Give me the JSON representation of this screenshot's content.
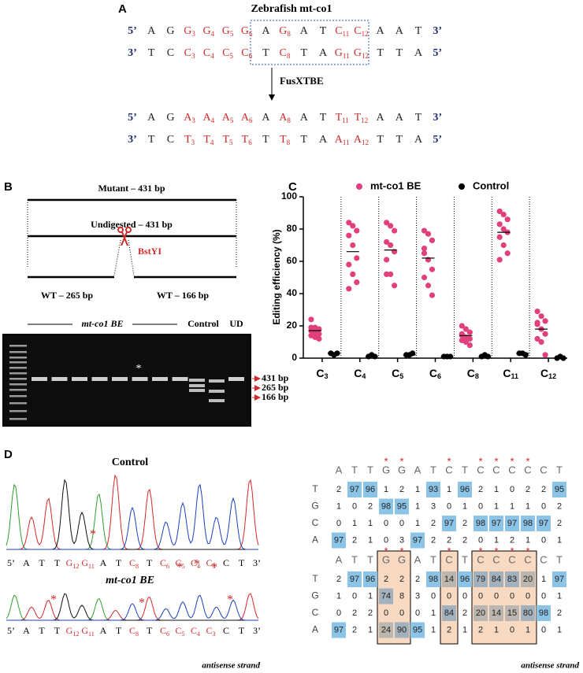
{
  "panel_a": {
    "label": "A",
    "title": "Zebrafish mt-co1",
    "original": [
      [
        "5’",
        "A",
        "G",
        {
          "base": "G",
          "sub": "3"
        },
        {
          "base": "G",
          "sub": "4"
        },
        {
          "base": "G",
          "sub": "5"
        },
        {
          "base": "G",
          "sub": "6"
        },
        "A",
        {
          "base": "G",
          "sub": "8"
        },
        "A",
        "T",
        {
          "base": "C",
          "sub": "11"
        },
        {
          "base": "C",
          "sub": "12"
        },
        "A",
        "A",
        "T",
        "3’"
      ],
      [
        "3’",
        "T",
        "C",
        {
          "base": "C",
          "sub": "3"
        },
        {
          "base": "C",
          "sub": "4"
        },
        {
          "base": "C",
          "sub": "5"
        },
        {
          "base": "C",
          "sub": "6"
        },
        "T",
        {
          "base": "C",
          "sub": "8"
        },
        "T",
        "A",
        {
          "base": "G",
          "sub": "11"
        },
        {
          "base": "G",
          "sub": "12"
        },
        "T",
        "T",
        "A",
        "5’"
      ]
    ],
    "arrow_label": "FusXTBE",
    "edited": [
      [
        "5’",
        "A",
        "G",
        {
          "base": "A",
          "sub": "3"
        },
        {
          "base": "A",
          "sub": "4"
        },
        {
          "base": "A",
          "sub": "5"
        },
        {
          "base": "A",
          "sub": "6"
        },
        "A",
        {
          "base": "A",
          "sub": "8"
        },
        "A",
        "T",
        {
          "base": "T",
          "sub": "11"
        },
        {
          "base": "T",
          "sub": "12"
        },
        "A",
        "A",
        "T",
        "3’"
      ],
      [
        "3’",
        "T",
        "C",
        {
          "base": "T",
          "sub": "3"
        },
        {
          "base": "T",
          "sub": "4"
        },
        {
          "base": "T",
          "sub": "5"
        },
        {
          "base": "T",
          "sub": "6"
        },
        "T",
        {
          "base": "T",
          "sub": "8"
        },
        "T",
        "A",
        {
          "base": "A",
          "sub": "11"
        },
        {
          "base": "A",
          "sub": "12"
        },
        "T",
        "T",
        "A",
        "5’"
      ]
    ]
  },
  "panel_b": {
    "label": "B",
    "mutant": "Mutant – 431 bp",
    "undigested": "Undigested – 431 bp",
    "enzyme": "BstYI",
    "wt_left": "WT – 265 bp",
    "wt_right": "WT – 166 bp",
    "gel_groups": [
      "mt-co1 BE",
      "Control",
      "UD"
    ],
    "gel_star": "*",
    "band_labels": [
      "431 bp",
      "265 bp",
      "166 bp"
    ]
  },
  "chart_data": {
    "type": "scatter",
    "panel_label": "C",
    "y_label": "Editing efficiency (%)",
    "categories": [
      {
        "base": "C",
        "sub": "3"
      },
      {
        "base": "C",
        "sub": "4"
      },
      {
        "base": "C",
        "sub": "5"
      },
      {
        "base": "C",
        "sub": "6"
      },
      {
        "base": "C",
        "sub": "8"
      },
      {
        "base": "C",
        "sub": "11"
      },
      {
        "base": "C",
        "sub": "12"
      }
    ],
    "ylim": [
      0,
      100
    ],
    "yticks": [
      0,
      20,
      40,
      60,
      80,
      100
    ],
    "series": [
      {
        "name": "mt-co1 BE",
        "color": "#e2407c",
        "values": [
          [
            24,
            19,
            18,
            17,
            16,
            15,
            14,
            13,
            12,
            19
          ],
          [
            84,
            82,
            79,
            76,
            70,
            62,
            58,
            52,
            47,
            43
          ],
          [
            84,
            82,
            79,
            72,
            70,
            66,
            61,
            52,
            45,
            52
          ],
          [
            79,
            77,
            73,
            68,
            61,
            55,
            50,
            45,
            39,
            65
          ],
          [
            20,
            18,
            16,
            14,
            13,
            12,
            11,
            10,
            8,
            15
          ],
          [
            91,
            89,
            86,
            83,
            80,
            78,
            75,
            70,
            65,
            61
          ],
          [
            29,
            26,
            23,
            21,
            18,
            15,
            12,
            10,
            2,
            22
          ]
        ],
        "means": [
          17,
          66,
          67,
          62,
          14,
          78,
          18
        ]
      },
      {
        "name": "Control",
        "color": "#000000",
        "values": [
          [
            3,
            2,
            3
          ],
          [
            1,
            2,
            1
          ],
          [
            2,
            2,
            3
          ],
          [
            1,
            1,
            1
          ],
          [
            1,
            2,
            1
          ],
          [
            3,
            3,
            2
          ],
          [
            0,
            1,
            0
          ]
        ],
        "means": [
          3,
          1,
          2,
          1,
          1,
          3,
          0
        ]
      }
    ]
  },
  "panel_d": {
    "label": "D",
    "control_title": "Control",
    "be_title": "mt-co1 BE",
    "sequence": [
      "5’",
      "A",
      "T",
      "T",
      {
        "base": "G",
        "sub": "12"
      },
      {
        "base": "G",
        "sub": "11"
      },
      "A",
      "T",
      {
        "base": "C",
        "sub": "8"
      },
      "T",
      {
        "base": "C",
        "sub": "6"
      },
      {
        "base": "C",
        "sub": "5"
      },
      {
        "base": "C",
        "sub": "4"
      },
      {
        "base": "C",
        "sub": "3"
      },
      "C",
      "T",
      "3’"
    ],
    "strand_note": "antisense strand",
    "chromatogram_stars": [
      "*",
      "*",
      "*",
      "*",
      "*",
      "*",
      "*"
    ],
    "tables": [
      {
        "bases": [
          "A",
          "T",
          "T",
          "G",
          "G",
          "A",
          "T",
          "C",
          "T",
          "C",
          "C",
          "C",
          "C",
          "C",
          "T"
        ],
        "stars": [
          null,
          null,
          null,
          "*",
          "*",
          null,
          null,
          "*",
          null,
          "*",
          "*",
          "*",
          "*",
          null,
          null
        ],
        "rows": [
          {
            "base": "T",
            "values": [
              2,
              97,
              96,
              1,
              2,
              1,
              93,
              1,
              96,
              2,
              1,
              0,
              2,
              2,
              95
            ]
          },
          {
            "base": "G",
            "values": [
              1,
              0,
              2,
              98,
              95,
              1,
              3,
              0,
              1,
              0,
              1,
              1,
              1,
              0,
              2
            ]
          },
          {
            "base": "C",
            "values": [
              0,
              1,
              1,
              0,
              0,
              1,
              2,
              97,
              2,
              98,
              97,
              97,
              98,
              97,
              2
            ]
          },
          {
            "base": "A",
            "values": [
              97,
              2,
              1,
              0,
              3,
              97,
              2,
              2,
              2,
              0,
              1,
              2,
              1,
              0,
              1
            ]
          }
        ]
      },
      {
        "bases": [
          "A",
          "T",
          "T",
          "G",
          "G",
          "A",
          "T",
          "C",
          "T",
          "C",
          "C",
          "C",
          "C",
          "C",
          "T"
        ],
        "stars": [
          null,
          null,
          null,
          "*",
          "*",
          null,
          null,
          "*",
          null,
          "*",
          "*",
          "*",
          "*",
          null,
          null
        ],
        "rows": [
          {
            "base": "T",
            "values": [
              2,
              97,
              96,
              2,
              2,
              2,
              98,
              14,
              96,
              79,
              84,
              83,
              20,
              1,
              97
            ]
          },
          {
            "base": "G",
            "values": [
              1,
              0,
              1,
              74,
              8,
              3,
              0,
              0,
              0,
              0,
              0,
              0,
              0,
              0,
              1
            ]
          },
          {
            "base": "C",
            "values": [
              0,
              2,
              2,
              0,
              0,
              0,
              1,
              84,
              2,
              20,
              14,
              15,
              80,
              98,
              2
            ]
          },
          {
            "base": "A",
            "values": [
              97,
              2,
              1,
              24,
              90,
              95,
              1,
              2,
              1,
              2,
              1,
              0,
              1,
              0,
              1
            ]
          }
        ]
      }
    ]
  }
}
